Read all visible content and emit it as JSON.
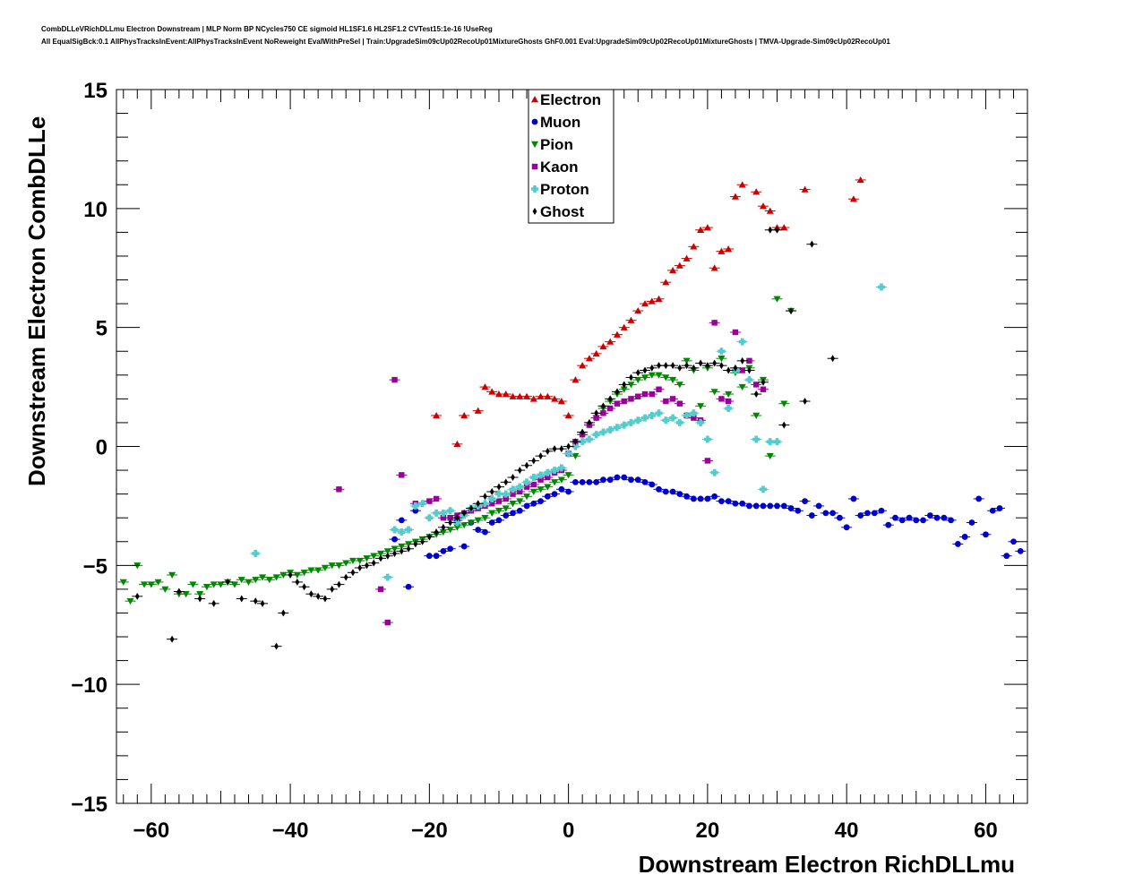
{
  "title_lines": [
    "CombDLLeVRichDLLmu Electron Downstream | MLP Norm BP NCycles750 CE sigmoid HL1SF1.6 HL2SF1.2 CVTest15:1e-16 !UseReg",
    "All EqualSigBck:0.1 AllPhysTracksInEvent:AllPhysTracksInEvent NoReweight EvalWithPreSel | Train:UpgradeSim09cUp02RecoUp01MixtureGhosts GhF0.001 Eval:UpgradeSim09cUp02RecoUp01MixtureGhosts | TMVA-Upgrade-Sim09cUp02RecoUp01"
  ],
  "chart_data": {
    "type": "scatter",
    "xlabel": "Downstream Electron RichDLLmu",
    "ylabel": "Downstream Electron CombDLLe",
    "xlim": [
      -65,
      66
    ],
    "ylim": [
      -15,
      15
    ],
    "x_ticks": [
      -60,
      -40,
      -20,
      0,
      20,
      40,
      60
    ],
    "x_tick_labels": [
      "−60",
      "−40",
      "−20",
      "0",
      "20",
      "40",
      "60"
    ],
    "y_ticks": [
      -15,
      -10,
      -5,
      0,
      5,
      10,
      15
    ],
    "y_tick_labels": [
      "−15",
      "−10",
      "−5",
      "0",
      "5",
      "10",
      "15"
    ],
    "grid": false,
    "legend_position": "top-center",
    "series": [
      {
        "name": "Electron",
        "color": "#cc0000",
        "marker": "triangle-up",
        "x": [
          -19,
          -16,
          -15,
          -13,
          -12,
          -11,
          -10,
          -9,
          -8,
          -7,
          -6,
          -5,
          -4,
          -3,
          -2,
          -1,
          0,
          1,
          2,
          3,
          4,
          5,
          6,
          7,
          8,
          9,
          10,
          11,
          12,
          13,
          14,
          15,
          16,
          17,
          18,
          19,
          20,
          21,
          22,
          23,
          24,
          25,
          27,
          28,
          29,
          30,
          31,
          34,
          41,
          42
        ],
        "y": [
          1.3,
          0.1,
          1.3,
          1.5,
          2.5,
          2.3,
          2.2,
          2.2,
          2.1,
          2.1,
          2.1,
          2.0,
          2.1,
          2.1,
          2.0,
          1.9,
          1.3,
          2.8,
          3.4,
          3.7,
          3.9,
          4.2,
          4.4,
          4.7,
          5.0,
          5.3,
          5.7,
          6.0,
          6.1,
          6.2,
          6.9,
          7.4,
          7.6,
          7.9,
          8.4,
          9.1,
          9.2,
          7.5,
          8.2,
          8.3,
          10.5,
          11.0,
          10.7,
          10.1,
          9.9,
          9.2,
          9.2,
          10.8,
          10.4,
          11.2
        ]
      },
      {
        "name": "Muon",
        "color": "#0000cc",
        "marker": "circle",
        "x": [
          -25,
          -24,
          -23,
          -22,
          -20,
          -19,
          -18,
          -17,
          -16,
          -15,
          -14,
          -13,
          -12,
          -11,
          -10,
          -9,
          -8,
          -7,
          -6,
          -5,
          -4,
          -3,
          -2,
          -1,
          0,
          1,
          2,
          3,
          4,
          5,
          6,
          7,
          8,
          9,
          10,
          11,
          12,
          13,
          14,
          15,
          16,
          17,
          18,
          19,
          20,
          21,
          22,
          23,
          24,
          25,
          26,
          27,
          28,
          29,
          30,
          31,
          32,
          33,
          34,
          35,
          36,
          37,
          38,
          39,
          40,
          41,
          42,
          43,
          44,
          45,
          46,
          47,
          48,
          49,
          50,
          51,
          52,
          53,
          54,
          55,
          56,
          57,
          58,
          59,
          60,
          61,
          62,
          63,
          64,
          65
        ],
        "y": [
          -3.9,
          -3.1,
          -5.9,
          -2.7,
          -4.6,
          -4.6,
          -4.4,
          -4.3,
          -3.1,
          -4.2,
          -3.2,
          -3.5,
          -3.6,
          -3.2,
          -3.1,
          -2.9,
          -2.8,
          -2.7,
          -2.5,
          -2.4,
          -2.3,
          -2.1,
          -2.0,
          -1.8,
          -1.9,
          -1.5,
          -1.5,
          -1.5,
          -1.5,
          -1.4,
          -1.4,
          -1.3,
          -1.3,
          -1.4,
          -1.4,
          -1.5,
          -1.6,
          -1.8,
          -1.9,
          -1.9,
          -2.0,
          -2.1,
          -2.2,
          -2.2,
          -2.2,
          -2.1,
          -2.3,
          -2.3,
          -2.4,
          -2.4,
          -2.5,
          -2.5,
          -2.5,
          -2.5,
          -2.5,
          -2.5,
          -2.6,
          -2.7,
          -2.3,
          -2.9,
          -2.5,
          -2.8,
          -2.8,
          -3.0,
          -3.4,
          -2.2,
          -2.9,
          -2.8,
          -2.8,
          -2.7,
          -3.3,
          -3.0,
          -3.1,
          -3.0,
          -3.1,
          -3.1,
          -2.9,
          -3.0,
          -3.0,
          -3.1,
          -4.1,
          -3.8,
          -3.2,
          -2.2,
          -3.7,
          -2.7,
          -2.6,
          -4.6,
          -4.0,
          -4.4
        ]
      },
      {
        "name": "Pion",
        "color": "#008800",
        "marker": "triangle-down",
        "x": [
          -64,
          -63,
          -62,
          -61,
          -60,
          -59,
          -58,
          -57,
          -56,
          -55,
          -54,
          -53,
          -52,
          -51,
          -50,
          -49,
          -48,
          -47,
          -46,
          -45,
          -44,
          -43,
          -42,
          -41,
          -40,
          -39,
          -38,
          -37,
          -36,
          -35,
          -34,
          -33,
          -32,
          -31,
          -30,
          -29,
          -28,
          -27,
          -26,
          -25,
          -24,
          -23,
          -22,
          -21,
          -20,
          -19,
          -18,
          -17,
          -16,
          -15,
          -14,
          -13,
          -12,
          -11,
          -10,
          -9,
          -8,
          -7,
          -6,
          -5,
          -4,
          -3,
          -2,
          -1,
          0,
          1,
          2,
          3,
          4,
          5,
          6,
          7,
          8,
          9,
          10,
          11,
          12,
          13,
          14,
          15,
          16,
          17,
          18,
          19,
          20,
          21,
          22,
          23,
          24,
          25,
          26,
          27,
          28,
          29,
          30,
          31,
          32
        ],
        "y": [
          -5.7,
          -6.5,
          -5.0,
          -5.8,
          -5.8,
          -5.7,
          -6.0,
          -5.4,
          -6.2,
          -6.2,
          -5.8,
          -6.2,
          -5.9,
          -5.8,
          -5.8,
          -5.7,
          -5.8,
          -5.6,
          -5.7,
          -5.6,
          -5.5,
          -5.6,
          -5.5,
          -5.4,
          -5.3,
          -5.4,
          -5.3,
          -5.2,
          -5.2,
          -5.1,
          -5.0,
          -5.0,
          -4.9,
          -4.8,
          -4.8,
          -4.7,
          -4.6,
          -4.5,
          -4.4,
          -4.3,
          -4.2,
          -4.1,
          -4.0,
          -3.9,
          -3.8,
          -3.7,
          -3.6,
          -3.5,
          -3.4,
          -3.3,
          -3.2,
          -3.1,
          -3.0,
          -2.8,
          -2.7,
          -2.6,
          -2.4,
          -2.3,
          -2.1,
          -1.9,
          -1.8,
          -1.7,
          -1.5,
          -1.4,
          -1.2,
          -0.4,
          0.5,
          0.9,
          1.2,
          1.6,
          1.9,
          2.2,
          2.4,
          2.6,
          2.8,
          2.9,
          3.0,
          3.0,
          2.9,
          2.8,
          2.6,
          3.6,
          3.2,
          1.7,
          3.3,
          2.3,
          3.7,
          2.2,
          3.1,
          2.5,
          3.3,
          1.3,
          2.8,
          -0.4,
          6.2,
          1.8,
          5.7
        ]
      },
      {
        "name": "Kaon",
        "color": "#990099",
        "marker": "square",
        "x": [
          -33,
          -27,
          -26,
          -25,
          -24,
          -22,
          -20,
          -19,
          -18,
          -17,
          -16,
          -15,
          -14,
          -13,
          -12,
          -11,
          -10,
          -9,
          -8,
          -7,
          -6,
          -5,
          -4,
          -3,
          -2,
          -1,
          0,
          1,
          2,
          3,
          4,
          5,
          6,
          7,
          8,
          9,
          10,
          11,
          12,
          13,
          14,
          15,
          16,
          17,
          18,
          19,
          20,
          21,
          22,
          23,
          24,
          25,
          26,
          27,
          28
        ],
        "y": [
          -1.8,
          -6.0,
          -7.4,
          2.8,
          -1.2,
          -2.4,
          -2.3,
          -2.2,
          -3.0,
          -3.0,
          -2.9,
          -2.8,
          -2.7,
          -2.6,
          -2.5,
          -2.4,
          -2.3,
          -2.2,
          -2.0,
          -1.9,
          -1.7,
          -1.6,
          -1.4,
          -1.3,
          -1.1,
          -1.0,
          -0.3,
          0.2,
          0.5,
          0.9,
          1.2,
          1.4,
          1.6,
          1.8,
          1.9,
          2.0,
          2.1,
          2.2,
          2.2,
          2.4,
          1.9,
          2.0,
          1.8,
          1.3,
          1.2,
          1.1,
          -0.6,
          5.2,
          2.0,
          1.9,
          4.8,
          3.2,
          3.6,
          2.6,
          2.4
        ]
      },
      {
        "name": "Proton",
        "color": "#55cccc",
        "marker": "cross",
        "x": [
          -45,
          -26,
          -25,
          -24,
          -23,
          -22,
          -21,
          -20,
          -19,
          -18,
          -17,
          -16,
          -15,
          -14,
          -13,
          -12,
          -11,
          -10,
          -9,
          -8,
          -7,
          -6,
          -5,
          -4,
          -3,
          -2,
          -1,
          0,
          1,
          2,
          3,
          4,
          5,
          6,
          7,
          8,
          9,
          10,
          11,
          12,
          13,
          14,
          15,
          16,
          17,
          18,
          19,
          20,
          21,
          22,
          23,
          24,
          25,
          26,
          27,
          28,
          29,
          30,
          45
        ],
        "y": [
          -4.5,
          -5.5,
          -3.5,
          -3.6,
          -3.5,
          -2.5,
          -2.4,
          -3.0,
          -2.8,
          -2.8,
          -2.7,
          -3.2,
          -2.9,
          -2.6,
          -2.5,
          -2.4,
          -2.2,
          -2.0,
          -2.0,
          -1.8,
          -1.7,
          -1.5,
          -1.3,
          -1.2,
          -1.1,
          -1.0,
          -0.9,
          -0.3,
          0.0,
          0.2,
          0.3,
          0.5,
          0.6,
          0.7,
          0.8,
          0.9,
          1.0,
          1.1,
          1.2,
          1.3,
          1.4,
          1.1,
          1.2,
          1.0,
          1.3,
          1.4,
          1.0,
          0.3,
          -1.1,
          4.0,
          1.6,
          3.2,
          4.4,
          2.8,
          0.3,
          -1.8,
          0.2,
          0.2,
          6.7
        ]
      },
      {
        "name": "Ghost",
        "color": "#000000",
        "marker": "diamond",
        "x": [
          -62,
          -57,
          -56,
          -53,
          -51,
          -49,
          -47,
          -45,
          -44,
          -42,
          -41,
          -40,
          -39,
          -38,
          -37,
          -36,
          -35,
          -34,
          -33,
          -32,
          -31,
          -30,
          -29,
          -28,
          -27,
          -26,
          -25,
          -24,
          -23,
          -22,
          -21,
          -20,
          -19,
          -18,
          -17,
          -16,
          -15,
          -14,
          -13,
          -12,
          -11,
          -10,
          -9,
          -8,
          -7,
          -6,
          -5,
          -4,
          -3,
          -2,
          -1,
          0,
          1,
          2,
          3,
          4,
          5,
          6,
          7,
          8,
          9,
          10,
          11,
          12,
          13,
          14,
          15,
          16,
          17,
          18,
          19,
          20,
          21,
          22,
          23,
          24,
          25,
          26,
          27,
          28,
          29,
          30,
          31,
          32,
          34,
          35,
          38
        ],
        "y": [
          -6.3,
          -8.1,
          -6.1,
          -6.4,
          -6.6,
          -5.7,
          -6.4,
          -6.5,
          -6.6,
          -8.4,
          -7.0,
          -5.4,
          -5.7,
          -5.9,
          -6.2,
          -6.3,
          -6.4,
          -6.0,
          -5.8,
          -5.5,
          -5.3,
          -5.1,
          -5.0,
          -4.9,
          -4.7,
          -4.6,
          -4.5,
          -4.4,
          -4.3,
          -4.1,
          -4.0,
          -3.8,
          -3.6,
          -3.4,
          -3.2,
          -3.0,
          -2.8,
          -2.6,
          -2.4,
          -2.1,
          -1.9,
          -1.7,
          -1.5,
          -1.3,
          -1.0,
          -0.8,
          -0.6,
          -0.4,
          -0.2,
          -0.1,
          -0.1,
          0.0,
          0.2,
          0.6,
          1.0,
          1.4,
          1.7,
          2.0,
          2.3,
          2.6,
          2.9,
          3.1,
          3.2,
          3.3,
          3.4,
          3.4,
          3.4,
          3.3,
          3.4,
          3.3,
          3.5,
          3.4,
          3.5,
          3.4,
          3.2,
          3.3,
          3.6,
          3.2,
          2.2,
          2.7,
          9.1,
          9.1,
          0.9,
          5.7,
          1.9,
          8.5,
          3.7
        ]
      }
    ]
  }
}
